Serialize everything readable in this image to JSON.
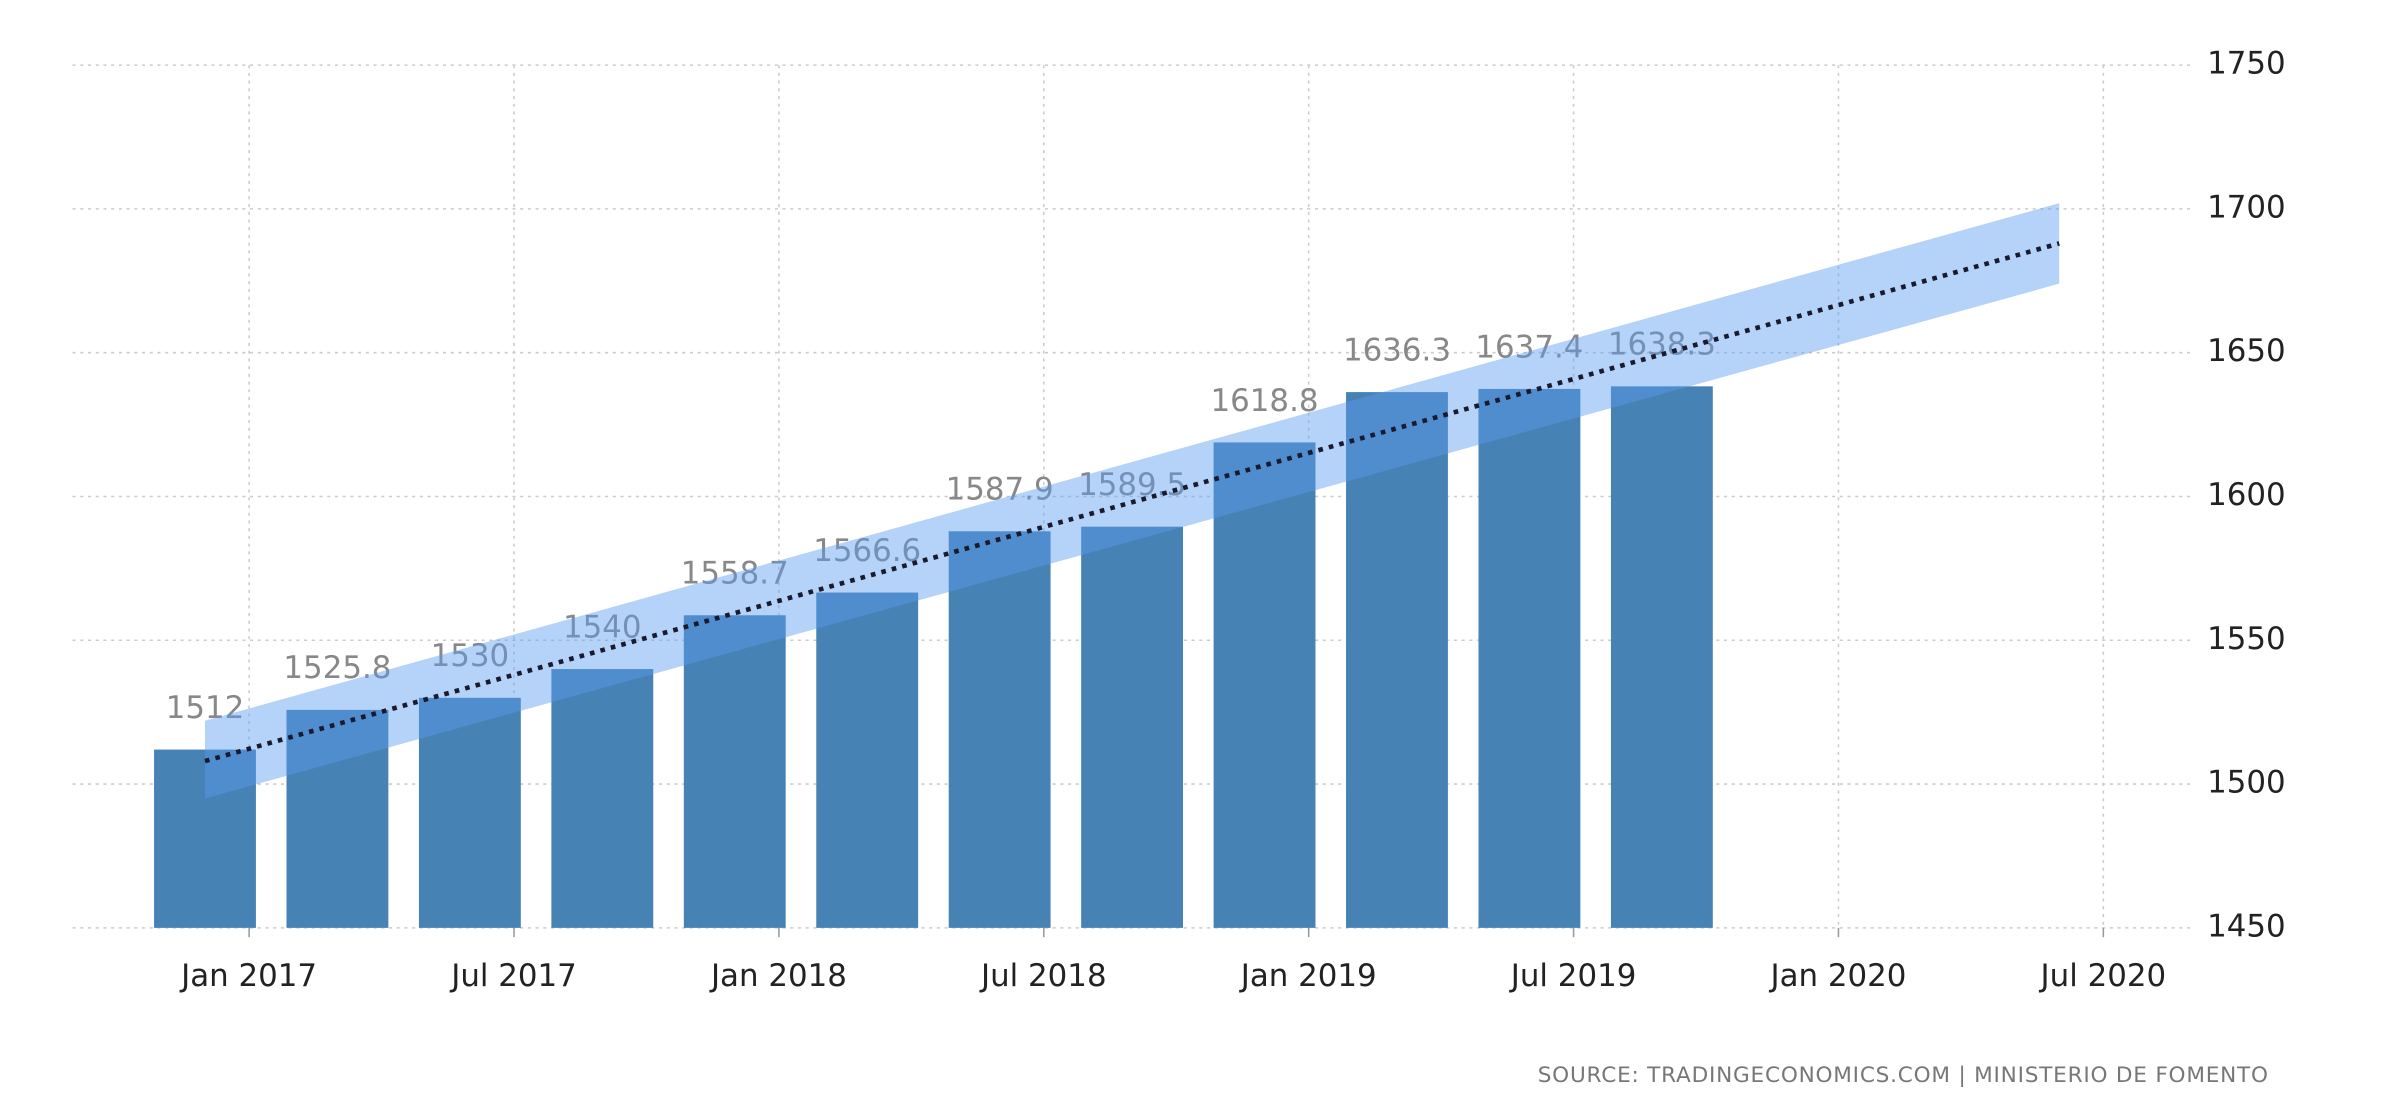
{
  "chart_data": {
    "type": "bar",
    "x": [
      "Dec 2016",
      "Mar 2017",
      "Jun 2017",
      "Sep 2017",
      "Dec 2017",
      "Mar 2018",
      "Jun 2018",
      "Sep 2018",
      "Dec 2018",
      "Mar 2019",
      "Jun 2019",
      "Sep 2019"
    ],
    "values": [
      1512,
      1525.8,
      1530,
      1540,
      1558.7,
      1566.6,
      1587.9,
      1589.5,
      1618.8,
      1636.3,
      1637.4,
      1638.3
    ],
    "color": "#4682b4",
    "trend": {
      "x": [
        "Dec 2016",
        "Jun 2020"
      ],
      "values": [
        1508,
        1688
      ],
      "lower": [
        1495,
        1674
      ],
      "upper": [
        1522,
        1702
      ],
      "color": "#1a1a2e",
      "band_color": "#5a9cf0"
    },
    "xlim": [
      "Sep 2016",
      "Sep 2020"
    ],
    "xticks": [
      "Jan 2017",
      "Jul 2017",
      "Jan 2018",
      "Jul 2018",
      "Jan 2019",
      "Jul 2019",
      "Jan 2020",
      "Jul 2020"
    ],
    "ylim": [
      1450,
      1750
    ],
    "yticks": [
      1450,
      1500,
      1550,
      1600,
      1650,
      1700,
      1750
    ],
    "y_axis_side": "right",
    "grid": true,
    "source": "SOURCE: TRADINGECONOMICS.COM | MINISTERIO DE FOMENTO"
  }
}
